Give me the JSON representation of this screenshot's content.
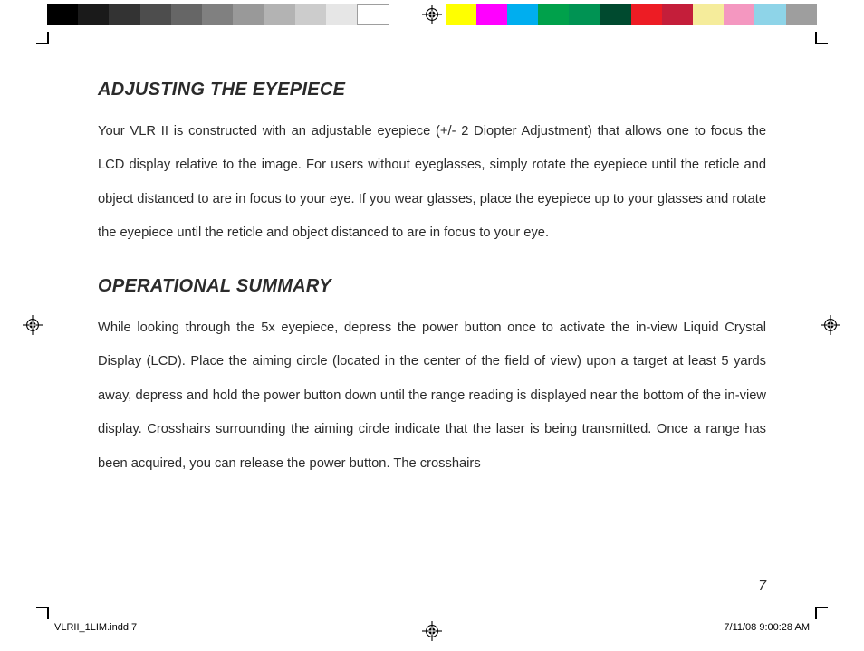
{
  "colorbar": {
    "left": [
      "#000000",
      "#1a1a1a",
      "#333333",
      "#4d4d4d",
      "#666666",
      "#808080",
      "#999999",
      "#b3b3b3",
      "#cccccc",
      "#e6e6e6",
      "#ffffff"
    ],
    "right": [
      "#ffff00",
      "#ff00ff",
      "#00aeef",
      "#00a14b",
      "#009353",
      "#004a2f",
      "#ed1c24",
      "#c41e3a",
      "#f5ec9b",
      "#f497c0",
      "#8ed4e8",
      "#9e9e9e"
    ],
    "left_border": "#9e9e9e"
  },
  "register_mark": {
    "color": "#000"
  },
  "page": {
    "section1": {
      "heading": "ADJUSTING THE EYEPIECE",
      "body": "Your VLR II is constructed with an adjustable eyepiece (+/- 2 Diopter Adjustment) that allows one to focus the LCD display relative to the image.   For users without eyeglasses, simply rotate the eyepiece until the reticle and object distanced to are in focus to your eye.  If you wear glasses, place the eyepiece up to your glasses and rotate the eyepiece until the reticle and object distanced to are in focus to your eye."
    },
    "section2": {
      "heading": "OPERATIONAL SUMMARY",
      "body": "While looking through the 5x eyepiece, depress the power button once to activate the in-view Liquid Crystal Display (LCD). Place the aiming circle (located in the center of the field of view) upon a target at least 5 yards away, depress and hold the power button down until the range reading is displayed near the bottom of the in-view display.   Crosshairs surrounding the aiming circle indicate that the laser is being transmitted.  Once a range has been acquired, you can release the power button. The crosshairs"
    },
    "number": "7"
  },
  "footer": {
    "left": "VLRII_1LIM.indd   7",
    "right": "7/11/08   9:00:28 AM"
  }
}
